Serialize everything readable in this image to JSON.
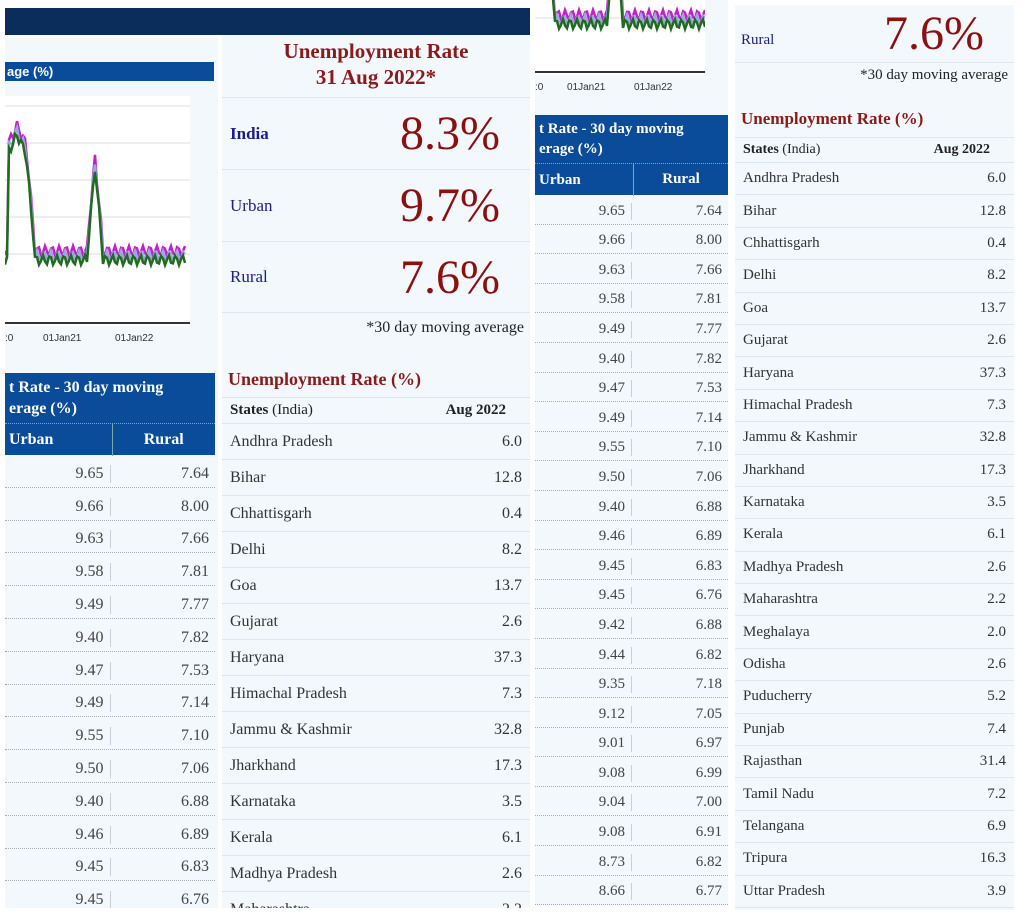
{
  "headline": {
    "title_line1": "Unemployment Rate",
    "title_line2": "31 Aug 2022*",
    "rows": [
      {
        "label": "India",
        "value": "8.3%"
      },
      {
        "label": "Urban",
        "value": "9.7%"
      },
      {
        "label": "Rural",
        "value": "7.6%"
      }
    ],
    "footnote": "*30 day moving average"
  },
  "chart": {
    "header_fragment": "age (%)",
    "ticks": [
      ":0",
      "01Jan21",
      "01Jan22"
    ],
    "colors": {
      "urban": "#c21fc9",
      "rural": "#1f6b1f",
      "india": "#9aa8e0"
    }
  },
  "ur_table": {
    "header_line1": "t Rate - 30 day moving",
    "header_line2": "erage (%)",
    "col_urban": "Urban",
    "col_rural": "Rural",
    "rows": [
      [
        "9.65",
        "7.64"
      ],
      [
        "9.66",
        "8.00"
      ],
      [
        "9.63",
        "7.66"
      ],
      [
        "9.58",
        "7.81"
      ],
      [
        "9.49",
        "7.77"
      ],
      [
        "9.40",
        "7.82"
      ],
      [
        "9.47",
        "7.53"
      ],
      [
        "9.49",
        "7.14"
      ],
      [
        "9.55",
        "7.10"
      ],
      [
        "9.50",
        "7.06"
      ],
      [
        "9.40",
        "6.88"
      ],
      [
        "9.46",
        "6.89"
      ],
      [
        "9.45",
        "6.83"
      ],
      [
        "9.45",
        "6.76"
      ],
      [
        "9.42",
        "6.88"
      ],
      [
        "9.44",
        "6.82"
      ],
      [
        "9.35",
        "7.18"
      ],
      [
        "9.12",
        "7.05"
      ],
      [
        "9.01",
        "6.97"
      ],
      [
        "9.08",
        "6.99"
      ],
      [
        "9.04",
        "7.00"
      ],
      [
        "9.08",
        "6.91"
      ],
      [
        "8.73",
        "6.82"
      ],
      [
        "8.66",
        "6.77"
      ]
    ]
  },
  "states_table": {
    "title": "Unemployment Rate (%)",
    "col_states_bold": "States",
    "col_states_rest": " (India)",
    "col_month": "Aug 2022",
    "rows": [
      [
        "Andhra Pradesh",
        "6.0"
      ],
      [
        "Bihar",
        "12.8"
      ],
      [
        "Chhattisgarh",
        "0.4"
      ],
      [
        "Delhi",
        "8.2"
      ],
      [
        "Goa",
        "13.7"
      ],
      [
        "Gujarat",
        "2.6"
      ],
      [
        "Haryana",
        "37.3"
      ],
      [
        "Himachal Pradesh",
        "7.3"
      ],
      [
        "Jammu & Kashmir",
        "32.8"
      ],
      [
        "Jharkhand",
        "17.3"
      ],
      [
        "Karnataka",
        "3.5"
      ],
      [
        "Kerala",
        "6.1"
      ],
      [
        "Madhya Pradesh",
        "2.6"
      ],
      [
        "Maharashtra",
        "2.2"
      ],
      [
        "Meghalaya",
        "2.0"
      ],
      [
        "Odisha",
        "2.6"
      ],
      [
        "Puducherry",
        "5.2"
      ],
      [
        "Punjab",
        "7.4"
      ],
      [
        "Rajasthan",
        "31.4"
      ],
      [
        "Tamil Nadu",
        "7.2"
      ],
      [
        "Telangana",
        "6.9"
      ],
      [
        "Tripura",
        "16.3"
      ],
      [
        "Uttar Pradesh",
        "3.9"
      ]
    ]
  }
}
